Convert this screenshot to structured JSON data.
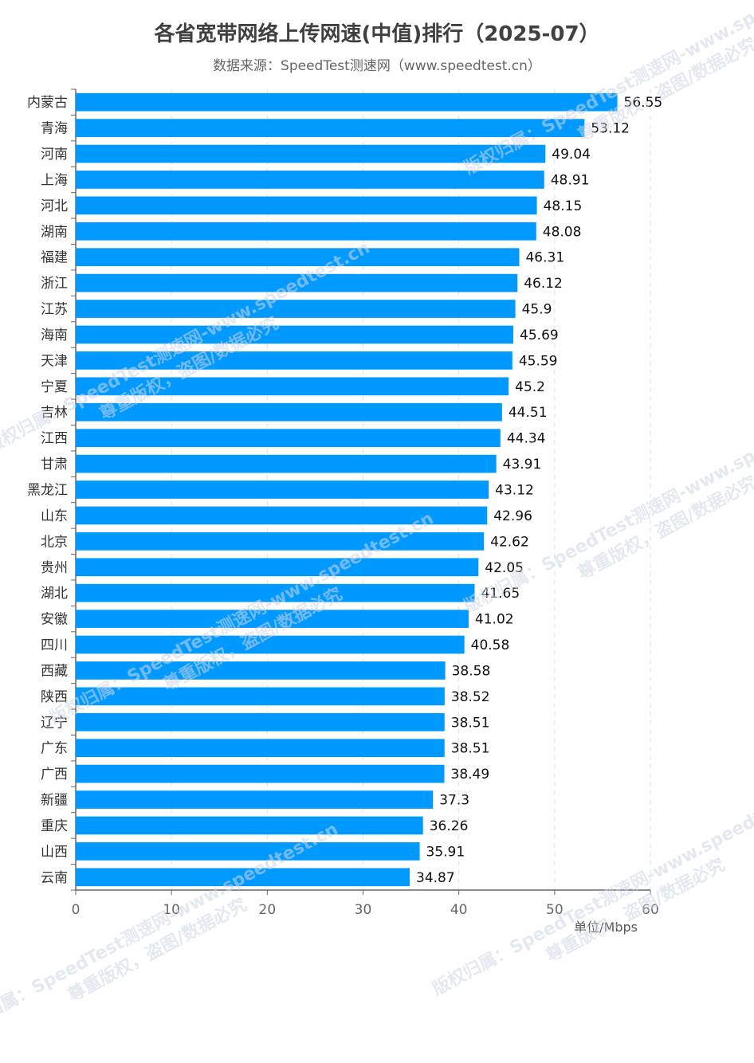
{
  "chart_data": {
    "type": "bar",
    "orientation": "horizontal",
    "title": "各省宽带网络上传网速(中值)排行（2025-07）",
    "subtitle": "数据来源：SpeedTest测速网（www.speedtest.cn）",
    "unit_label": "单位/Mbps",
    "xlim": [
      0,
      60
    ],
    "x_ticks": [
      "0",
      "10",
      "20",
      "30",
      "40",
      "50",
      "60"
    ],
    "grid": "vertical dashed",
    "bar_color": "#0099ff",
    "categories": [
      "内蒙古",
      "青海",
      "河南",
      "上海",
      "河北",
      "湖南",
      "福建",
      "浙江",
      "江苏",
      "海南",
      "天津",
      "宁夏",
      "吉林",
      "江西",
      "甘肃",
      "黑龙江",
      "山东",
      "北京",
      "贵州",
      "湖北",
      "安徽",
      "四川",
      "西藏",
      "陕西",
      "辽宁",
      "广东",
      "广西",
      "新疆",
      "重庆",
      "山西",
      "云南"
    ],
    "values": [
      56.55,
      53.12,
      49.04,
      48.91,
      48.15,
      48.08,
      46.31,
      46.12,
      45.9,
      45.69,
      45.59,
      45.2,
      44.51,
      44.34,
      43.91,
      43.12,
      42.96,
      42.62,
      42.05,
      41.65,
      41.02,
      40.58,
      38.58,
      38.52,
      38.51,
      38.51,
      38.49,
      37.3,
      36.26,
      35.91,
      34.87
    ],
    "value_labels": [
      "56.55",
      "53.12",
      "49.04",
      "48.91",
      "48.15",
      "48.08",
      "46.31",
      "46.12",
      "45.9",
      "45.69",
      "45.59",
      "45.2",
      "44.51",
      "44.34",
      "43.91",
      "43.12",
      "42.96",
      "42.62",
      "42.05",
      "41.65",
      "41.02",
      "40.58",
      "38.58",
      "38.52",
      "38.51",
      "38.51",
      "38.49",
      "37.3",
      "36.26",
      "35.91",
      "34.87"
    ]
  },
  "watermark": {
    "line1": "版权归属：SpeedTest测速网-www.speedtest.cn",
    "line2": "尊重版权，盗图/数据必究"
  }
}
